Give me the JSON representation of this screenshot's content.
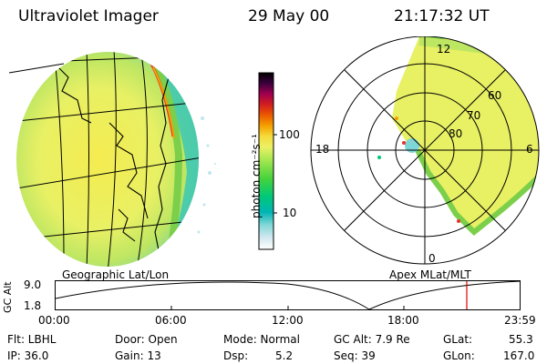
{
  "header": {
    "title": "Ultraviolet Imager",
    "date": "29 May 00",
    "time": "21:17:32 UT"
  },
  "colorbar": {
    "label": "photon cm⁻²s⁻¹",
    "tick_100": "100",
    "tick_10": "10",
    "colors": [
      "#ffffff",
      "#cfe7ef",
      "#7fd6d6",
      "#00b4b4",
      "#00c878",
      "#46d23c",
      "#a0e650",
      "#ebf064",
      "#f5dc3c",
      "#f5a000",
      "#eb5a00",
      "#d21e1e",
      "#a00050",
      "#3c003c",
      "#000000"
    ]
  },
  "images": {
    "left_caption": "Geographic Lat/Lon",
    "right_caption": "Apex MLat/MLT"
  },
  "polar": {
    "mlt_top": "12",
    "mlt_left": "18",
    "mlt_right": "6",
    "mlt_bottom": "0",
    "lat_60": "60",
    "lat_70": "70",
    "lat_80": "80"
  },
  "altplot": {
    "ylabel": "GC Alt",
    "ytick_top": "9.0",
    "ytick_bottom": "1.8",
    "xticks": [
      "00:00",
      "06:00",
      "12:00",
      "18:00",
      "23:59"
    ],
    "marker_color": "#e00000"
  },
  "info": {
    "flt": "Flt: LBHL",
    "ip": "IP: 36.0",
    "door": "Door: Open",
    "gain": "Gain: 13",
    "mode": "Mode: Normal",
    "dsp_label": "Dsp:",
    "dsp_value": "5.2",
    "gcalt": "GC Alt: 7.9 Re",
    "seq": "Seq: 39",
    "glat_label": "GLat:",
    "glat_value": "55.3",
    "glon_label": "GLon:",
    "glon_value": "167.0"
  }
}
